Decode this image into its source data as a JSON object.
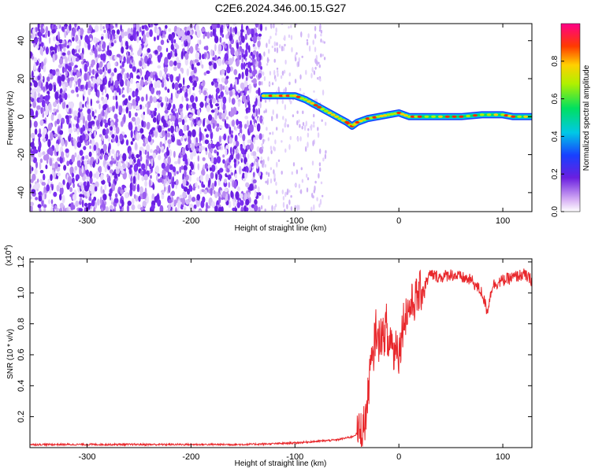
{
  "title": "C2E6.2024.346.00.15.G27",
  "colors": {
    "snr_line": "#e8262a",
    "axis": "#000000",
    "spectrogram_noise": "#6a1fe0"
  },
  "chart_data": [
    {
      "type": "heatmap",
      "title": "",
      "xlabel": "Height of straight line (km)",
      "ylabel": "Frequency (Hz)",
      "xlim": [
        -355,
        128
      ],
      "ylim": [
        -50,
        49
      ],
      "xticks": [
        -300,
        -200,
        -100,
        0,
        100
      ],
      "yticks": [
        -40,
        -20,
        0,
        20,
        40
      ],
      "grid": false,
      "ridge_track": {
        "x": [
          -130,
          -120,
          -110,
          -100,
          -90,
          -80,
          -70,
          -60,
          -50,
          -45,
          -40,
          -30,
          -20,
          -10,
          0,
          10,
          20,
          40,
          60,
          80,
          100,
          110,
          128
        ],
        "frequency": [
          11,
          11,
          11,
          11,
          9,
          6,
          3,
          0,
          -3,
          -5,
          -3,
          -1,
          0,
          1,
          2,
          0,
          0,
          0,
          0,
          1,
          1,
          0,
          0
        ]
      },
      "colorbar": {
        "label": "Normalized spectral amplitude",
        "ticks": [
          0.0,
          0.2,
          0.4,
          0.6,
          0.8
        ],
        "range": [
          0,
          1
        ]
      }
    },
    {
      "type": "line",
      "title": "",
      "xlabel": "Height of straight line (km)",
      "ylabel": "SNR (10 * v/v)",
      "y_multiplier_label": "(x10",
      "y_multiplier_exp": "4",
      "xlim": [
        -355,
        128
      ],
      "ylim": [
        0,
        1.22
      ],
      "xticks": [
        -300,
        -200,
        -100,
        0,
        100
      ],
      "yticks": [
        0.2,
        0.4,
        0.6,
        0.8,
        1.0,
        1.2
      ],
      "grid": false,
      "series": [
        {
          "x": [
            -355,
            -300,
            -250,
            -200,
            -150,
            -120,
            -100,
            -80,
            -60,
            -45,
            -38,
            -33,
            -30,
            -28,
            -25,
            -22,
            -20,
            -18,
            -15,
            -12,
            -10,
            -8,
            -5,
            -2,
            0,
            5,
            10,
            15,
            20,
            25,
            30,
            40,
            50,
            60,
            70,
            80,
            85,
            90,
            100,
            110,
            120,
            128
          ],
          "y": [
            0.02,
            0.02,
            0.02,
            0.02,
            0.02,
            0.025,
            0.03,
            0.04,
            0.05,
            0.07,
            0.1,
            0.15,
            0.3,
            0.5,
            0.55,
            0.8,
            0.65,
            0.75,
            0.7,
            0.8,
            0.6,
            0.75,
            0.6,
            0.7,
            0.6,
            0.85,
            0.9,
            0.95,
            1.0,
            1.05,
            1.12,
            1.1,
            1.12,
            1.1,
            1.08,
            1.0,
            0.88,
            1.05,
            1.08,
            1.1,
            1.12,
            1.08
          ]
        }
      ]
    }
  ]
}
